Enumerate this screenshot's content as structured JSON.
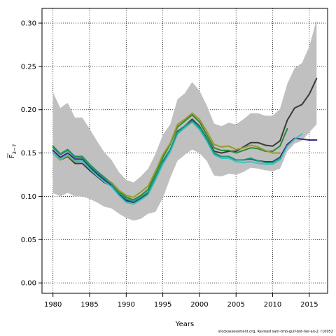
{
  "chart_data": {
    "type": "line",
    "xlabel": "Years",
    "ylabel_base": "F",
    "ylabel_sub": "3−7",
    "xlim": [
      1978.5,
      2017.5
    ],
    "ylim": [
      -0.012,
      0.317
    ],
    "xticks": [
      1980,
      1985,
      1990,
      1995,
      2000,
      2005,
      2010,
      2015
    ],
    "yticks": [
      0.0,
      0.05,
      0.1,
      0.15,
      0.2,
      0.25,
      0.3
    ],
    "ytick_labels": [
      "0.00",
      "0.05",
      "0.10",
      "0.15",
      "0.20",
      "0.25",
      "0.30"
    ],
    "grid": true,
    "band": {
      "color": "#c0c0c0",
      "x": [
        1980,
        1981,
        1982,
        1983,
        1984,
        1985,
        1986,
        1987,
        1988,
        1989,
        1990,
        1991,
        1992,
        1993,
        1994,
        1995,
        1996,
        1997,
        1998,
        1999,
        2000,
        2001,
        2002,
        2003,
        2004,
        2005,
        2006,
        2007,
        2008,
        2009,
        2010,
        2011,
        2012,
        2013,
        2014,
        2015,
        2016
      ],
      "upper": [
        0.22,
        0.202,
        0.208,
        0.191,
        0.191,
        0.178,
        0.164,
        0.151,
        0.142,
        0.128,
        0.119,
        0.116,
        0.123,
        0.132,
        0.149,
        0.171,
        0.183,
        0.212,
        0.219,
        0.232,
        0.222,
        0.205,
        0.184,
        0.181,
        0.185,
        0.183,
        0.189,
        0.196,
        0.196,
        0.193,
        0.193,
        0.201,
        0.23,
        0.248,
        0.254,
        0.273,
        0.304
      ],
      "lower": [
        0.104,
        0.1,
        0.104,
        0.1,
        0.1,
        0.097,
        0.093,
        0.088,
        0.086,
        0.08,
        0.075,
        0.072,
        0.074,
        0.08,
        0.082,
        0.098,
        0.121,
        0.141,
        0.148,
        0.154,
        0.15,
        0.141,
        0.124,
        0.123,
        0.126,
        0.125,
        0.128,
        0.133,
        0.132,
        0.13,
        0.129,
        0.132,
        0.152,
        0.161,
        0.164,
        0.174,
        0.183
      ]
    },
    "series": [
      {
        "color": "#3a3a3a",
        "x": [
          1980,
          1981,
          1982,
          1983,
          1984,
          1985,
          1986,
          1987,
          1988,
          1989,
          1990,
          1991,
          1992,
          1993,
          1994,
          1995,
          1996,
          1997,
          1998,
          1999,
          2000,
          2001,
          2002,
          2003,
          2004,
          2005,
          2006,
          2007,
          2008,
          2009,
          2010,
          2011,
          2012,
          2013,
          2014,
          2015,
          2016
        ],
        "values": [
          0.15,
          0.142,
          0.146,
          0.138,
          0.138,
          0.13,
          0.123,
          0.116,
          0.112,
          0.103,
          0.095,
          0.093,
          0.098,
          0.104,
          0.121,
          0.14,
          0.153,
          0.175,
          0.181,
          0.189,
          0.181,
          0.167,
          0.152,
          0.15,
          0.152,
          0.152,
          0.157,
          0.162,
          0.162,
          0.159,
          0.158,
          0.164,
          0.188,
          0.202,
          0.206,
          0.218,
          0.236
        ]
      },
      {
        "color": "#2a8a3c",
        "x": [
          1980,
          1981,
          1982,
          1983,
          1984,
          1985,
          1986,
          1987,
          1988,
          1989,
          1990,
          1991,
          1992,
          1993,
          1994,
          1995,
          1996,
          1997,
          1998,
          1999,
          2000,
          2001,
          2002,
          2003,
          2004,
          2005,
          2006,
          2007,
          2008,
          2009,
          2010,
          2011,
          2012
        ],
        "values": [
          0.158,
          0.149,
          0.154,
          0.146,
          0.146,
          0.137,
          0.129,
          0.122,
          0.115,
          0.106,
          0.099,
          0.096,
          0.101,
          0.108,
          0.126,
          0.145,
          0.16,
          0.18,
          0.187,
          0.194,
          0.186,
          0.171,
          0.156,
          0.153,
          0.153,
          0.15,
          0.153,
          0.156,
          0.155,
          0.152,
          0.152,
          0.158,
          0.178
        ]
      },
      {
        "color": "#9a9a2a",
        "x": [
          1980,
          1981,
          1982,
          1983,
          1984,
          1985,
          1986,
          1987,
          1988,
          1989,
          1990,
          1991,
          1992,
          1993,
          1994,
          1995,
          1996,
          1997,
          1998,
          1999,
          2000,
          2001,
          2002,
          2003,
          2004,
          2005,
          2006,
          2007,
          2008,
          2009,
          2010,
          2011
        ],
        "values": [
          0.15,
          0.142,
          0.147,
          0.14,
          0.141,
          0.134,
          0.126,
          0.12,
          0.116,
          0.107,
          0.101,
          0.099,
          0.105,
          0.112,
          0.129,
          0.148,
          0.161,
          0.183,
          0.189,
          0.196,
          0.189,
          0.175,
          0.16,
          0.157,
          0.158,
          0.154,
          0.156,
          0.159,
          0.157,
          0.153,
          0.15,
          0.15
        ]
      },
      {
        "color": "#3a2a7a",
        "x": [
          1980,
          1981,
          1982,
          1983,
          1984,
          1985,
          1986,
          1987,
          1988,
          1989,
          1990,
          1991,
          1992,
          1993,
          1994,
          1995,
          1996,
          1997,
          1998,
          1999,
          2000,
          2001,
          2002,
          2003,
          2004,
          2005,
          2006,
          2007,
          2008,
          2009,
          2010,
          2011,
          2012,
          2013,
          2014,
          2015,
          2016
        ],
        "values": [
          0.153,
          0.145,
          0.15,
          0.143,
          0.143,
          0.134,
          0.126,
          0.119,
          0.113,
          0.103,
          0.096,
          0.093,
          0.098,
          0.104,
          0.121,
          0.139,
          0.153,
          0.173,
          0.18,
          0.186,
          0.178,
          0.165,
          0.149,
          0.146,
          0.146,
          0.142,
          0.142,
          0.143,
          0.141,
          0.14,
          0.14,
          0.145,
          0.16,
          0.167,
          0.166,
          0.165,
          0.165
        ]
      },
      {
        "color": "#40c0c0",
        "x": [
          1980,
          1981,
          1982,
          1983,
          1984,
          1985,
          1986,
          1987,
          1988,
          1989,
          1990,
          1991,
          1992,
          1993,
          1994,
          1995,
          1996,
          1997,
          1998,
          1999,
          2000,
          2001,
          2002,
          2003,
          2004,
          2005,
          2006,
          2007,
          2008,
          2009,
          2010,
          2011,
          2012,
          2013,
          2014
        ],
        "values": [
          0.15,
          0.143,
          0.148,
          0.141,
          0.141,
          0.132,
          0.124,
          0.117,
          0.111,
          0.101,
          0.093,
          0.091,
          0.096,
          0.102,
          0.119,
          0.137,
          0.151,
          0.172,
          0.179,
          0.186,
          0.177,
          0.164,
          0.148,
          0.144,
          0.144,
          0.14,
          0.139,
          0.14,
          0.138,
          0.137,
          0.137,
          0.142,
          0.158,
          0.166,
          0.172
        ]
      },
      {
        "color": "#1a9a7a",
        "x": [
          1980,
          1981,
          1982,
          1983,
          1984,
          1985,
          1986,
          1987,
          1988,
          1989,
          1990,
          1991,
          1992,
          1993,
          1994,
          1995,
          1996,
          1997,
          1998,
          1999,
          2000,
          2001,
          2002,
          2003,
          2004,
          2005,
          2006,
          2007,
          2008,
          2009,
          2010,
          2011
        ],
        "values": [
          0.156,
          0.148,
          0.153,
          0.145,
          0.145,
          0.136,
          0.128,
          0.121,
          0.114,
          0.104,
          0.097,
          0.094,
          0.099,
          0.105,
          0.122,
          0.141,
          0.154,
          0.174,
          0.181,
          0.187,
          0.18,
          0.166,
          0.15,
          0.146,
          0.146,
          0.142,
          0.142,
          0.144,
          0.141,
          0.139,
          0.139,
          0.144
        ]
      }
    ]
  },
  "footer": "stockassessment.org, Revised  sam-tmb-gulf-bot-her-an-2, r10052"
}
